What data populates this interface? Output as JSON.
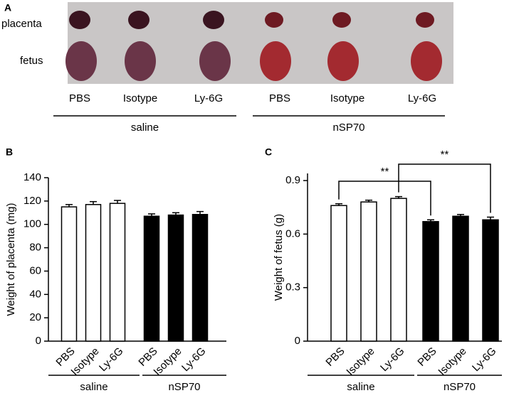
{
  "panel_a": {
    "label": "A",
    "rows": [
      "placenta",
      "fetus"
    ],
    "columns": [
      "PBS",
      "Isotype",
      "Ly-6G",
      "PBS",
      "Isotype",
      "Ly-6G"
    ],
    "groups": [
      "saline",
      "nSP70"
    ]
  },
  "chart_data": [
    {
      "type": "bar",
      "panel_label": "B",
      "ylabel": "Weight of placenta (mg)",
      "categories": [
        "PBS",
        "Isotype",
        "Ly-6G",
        "PBS",
        "Isotype",
        "Ly-6G"
      ],
      "values": [
        115,
        117,
        118,
        107,
        108,
        108.5
      ],
      "errors": [
        2,
        2.5,
        2.5,
        2,
        2,
        2.5
      ],
      "colors": [
        "#ffffff",
        "#ffffff",
        "#ffffff",
        "#000000",
        "#000000",
        "#000000"
      ],
      "groups": [
        "saline",
        "nSP70"
      ],
      "ylim": [
        0,
        140
      ],
      "yticks": [
        0,
        20,
        40,
        60,
        80,
        100,
        120,
        140
      ]
    },
    {
      "type": "bar",
      "panel_label": "C",
      "ylabel": "Weight of fetus (g)",
      "categories": [
        "PBS",
        "Isotype",
        "Ly-6G",
        "PBS",
        "Isotype",
        "Ly-6G"
      ],
      "values": [
        0.76,
        0.78,
        0.8,
        0.67,
        0.7,
        0.68
      ],
      "errors": [
        0.01,
        0.01,
        0.01,
        0.01,
        0.01,
        0.015
      ],
      "colors": [
        "#ffffff",
        "#ffffff",
        "#ffffff",
        "#000000",
        "#000000",
        "#000000"
      ],
      "groups": [
        "saline",
        "nSP70"
      ],
      "ylim": [
        0,
        0.94
      ],
      "yticks": [
        0,
        0.3,
        0.6,
        0.9
      ],
      "annotations": [
        {
          "text": "**",
          "from": 0,
          "to": 3
        },
        {
          "text": "**",
          "from": 2,
          "to": 5
        }
      ]
    }
  ]
}
